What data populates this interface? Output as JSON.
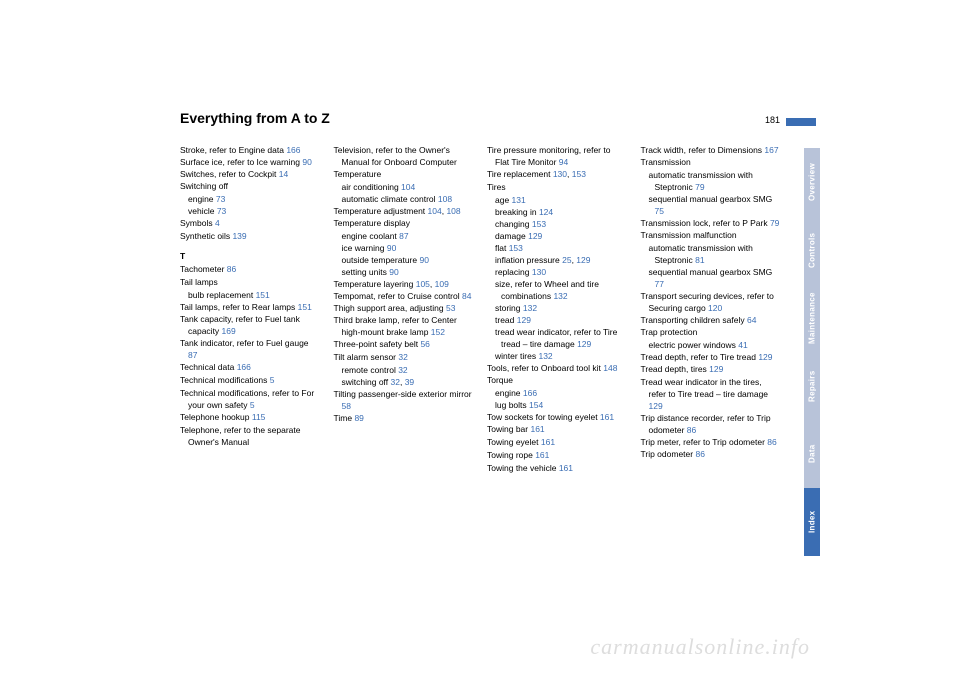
{
  "title": "Everything from A to Z",
  "pagenum": "181",
  "watermark": "carmanualsonline.info",
  "tabs": [
    {
      "label": "Overview",
      "active": false
    },
    {
      "label": "Controls",
      "active": false
    },
    {
      "label": "Maintenance",
      "active": false
    },
    {
      "label": "Repairs",
      "active": false
    },
    {
      "label": "Data",
      "active": false
    },
    {
      "label": "Index",
      "active": true
    }
  ],
  "c1": [
    {
      "t": "Stroke, refer to Engine data ",
      "p": "166",
      "cls": "indent"
    },
    {
      "t": "Surface ice, refer to Ice warning ",
      "p": "90",
      "cls": "indent"
    },
    {
      "t": "Switches, refer to Cockpit ",
      "p": "14",
      "cls": "indent"
    },
    {
      "t": "Switching off",
      "cls": "entry"
    },
    {
      "t": "engine ",
      "p": "73",
      "cls": "sub"
    },
    {
      "t": "vehicle ",
      "p": "73",
      "cls": "sub"
    },
    {
      "t": "Symbols ",
      "p": "4",
      "cls": "entry"
    },
    {
      "t": "Synthetic oils ",
      "p": "139",
      "cls": "entry"
    },
    {
      "t": "T",
      "cls": "section"
    },
    {
      "t": "Tachometer ",
      "p": "86",
      "cls": "entry"
    },
    {
      "t": "Tail lamps",
      "cls": "entry"
    },
    {
      "t": "bulb replacement ",
      "p": "151",
      "cls": "sub"
    },
    {
      "t": "Tail lamps, refer to Rear lamps ",
      "p": "151",
      "cls": "indent"
    },
    {
      "t": "Tank capacity, refer to Fuel tank capacity ",
      "p": "169",
      "cls": "indent"
    },
    {
      "t": "Tank indicator, refer to Fuel gauge ",
      "p": "87",
      "cls": "indent"
    },
    {
      "t": "Technical data ",
      "p": "166",
      "cls": "entry"
    },
    {
      "t": "Technical modifications ",
      "p": "5",
      "cls": "entry"
    },
    {
      "t": "Technical modifications, refer to For your own safety ",
      "p": "5",
      "cls": "indent"
    },
    {
      "t": "Telephone hookup ",
      "p": "115",
      "cls": "entry"
    },
    {
      "t": "Telephone, refer to the separate Owner's Manual",
      "cls": "indent"
    }
  ],
  "c2": [
    {
      "t": "Television, refer to the Owner's Manual for Onboard Computer",
      "cls": "indent"
    },
    {
      "t": "Temperature",
      "cls": "entry"
    },
    {
      "t": "air conditioning ",
      "p": "104",
      "cls": "sub"
    },
    {
      "t": "automatic climate control ",
      "p": "108",
      "cls": "sub"
    },
    {
      "t": "Temperature adjustment ",
      "p": "104",
      "p2": "108",
      "cls": "indent"
    },
    {
      "t": "Temperature display",
      "cls": "entry"
    },
    {
      "t": "engine coolant ",
      "p": "87",
      "cls": "sub"
    },
    {
      "t": "ice warning ",
      "p": "90",
      "cls": "sub"
    },
    {
      "t": "outside temperature ",
      "p": "90",
      "cls": "sub"
    },
    {
      "t": "setting units ",
      "p": "90",
      "cls": "sub"
    },
    {
      "t": "Temperature layering ",
      "p": "105",
      "p2": "109",
      "cls": "indent"
    },
    {
      "t": "Tempomat, refer to Cruise control ",
      "p": "84",
      "cls": "indent"
    },
    {
      "t": "Thigh support area, adjusting ",
      "p": "53",
      "cls": "indent"
    },
    {
      "t": "Third brake lamp, refer to Center high-mount brake lamp ",
      "p": "152",
      "cls": "indent"
    },
    {
      "t": "Three-point safety belt ",
      "p": "56",
      "cls": "entry"
    },
    {
      "t": "Tilt alarm sensor ",
      "p": "32",
      "cls": "entry"
    },
    {
      "t": "remote control ",
      "p": "32",
      "cls": "sub"
    },
    {
      "t": "switching off ",
      "p": "32",
      "p2": "39",
      "cls": "sub"
    },
    {
      "t": "Tilting passenger-side exterior mirror ",
      "p": "58",
      "cls": "indent"
    },
    {
      "t": "Time ",
      "p": "89",
      "cls": "entry"
    }
  ],
  "c3": [
    {
      "t": "Tire pressure monitoring, refer to Flat Tire Monitor ",
      "p": "94",
      "cls": "indent"
    },
    {
      "t": "Tire replacement ",
      "p": "130",
      "p2": "153",
      "cls": "entry"
    },
    {
      "t": "Tires",
      "cls": "entry"
    },
    {
      "t": "age ",
      "p": "131",
      "cls": "sub"
    },
    {
      "t": "breaking in ",
      "p": "124",
      "cls": "sub"
    },
    {
      "t": "changing ",
      "p": "153",
      "cls": "sub"
    },
    {
      "t": "damage ",
      "p": "129",
      "cls": "sub"
    },
    {
      "t": "flat ",
      "p": "153",
      "cls": "sub"
    },
    {
      "t": "inflation pressure ",
      "p": "25",
      "p2": "129",
      "cls": "sub"
    },
    {
      "t": "replacing ",
      "p": "130",
      "cls": "sub"
    },
    {
      "t": "size, refer to Wheel and tire combinations ",
      "p": "132",
      "cls": "sub"
    },
    {
      "t": "storing ",
      "p": "132",
      "cls": "sub"
    },
    {
      "t": "tread ",
      "p": "129",
      "cls": "sub"
    },
    {
      "t": "tread wear indicator, refer to Tire tread – tire damage ",
      "p": "129",
      "cls": "sub"
    },
    {
      "t": "winter tires ",
      "p": "132",
      "cls": "sub"
    },
    {
      "t": "Tools, refer to Onboard tool kit ",
      "p": "148",
      "cls": "indent"
    },
    {
      "t": "Torque",
      "cls": "entry"
    },
    {
      "t": "engine ",
      "p": "166",
      "cls": "sub"
    },
    {
      "t": "lug bolts ",
      "p": "154",
      "cls": "sub"
    },
    {
      "t": "Tow sockets for towing eyelet ",
      "p": "161",
      "cls": "indent"
    },
    {
      "t": "Towing bar ",
      "p": "161",
      "cls": "entry"
    },
    {
      "t": "Towing eyelet ",
      "p": "161",
      "cls": "entry"
    },
    {
      "t": "Towing rope ",
      "p": "161",
      "cls": "entry"
    },
    {
      "t": "Towing the vehicle ",
      "p": "161",
      "cls": "entry"
    }
  ],
  "c4": [
    {
      "t": "Track width, refer to Dimensions ",
      "p": "167",
      "cls": "indent"
    },
    {
      "t": "Transmission",
      "cls": "entry"
    },
    {
      "t": "automatic transmission with Steptronic ",
      "p": "79",
      "cls": "sub"
    },
    {
      "t": "sequential manual gearbox SMG ",
      "p": "75",
      "cls": "sub"
    },
    {
      "t": "Transmission lock, refer to P Park ",
      "p": "79",
      "cls": "indent"
    },
    {
      "t": "Transmission malfunction",
      "cls": "entry"
    },
    {
      "t": "automatic transmission with Steptronic ",
      "p": "81",
      "cls": "sub"
    },
    {
      "t": "sequential manual gearbox SMG ",
      "p": "77",
      "cls": "sub"
    },
    {
      "t": "Transport securing devices, refer to Securing cargo ",
      "p": "120",
      "cls": "indent"
    },
    {
      "t": "Transporting children safely ",
      "p": "64",
      "cls": "indent"
    },
    {
      "t": "Trap protection",
      "cls": "entry"
    },
    {
      "t": "electric power windows ",
      "p": "41",
      "cls": "sub"
    },
    {
      "t": "Tread depth, refer to Tire tread ",
      "p": "129",
      "cls": "indent"
    },
    {
      "t": "Tread depth, tires ",
      "p": "129",
      "cls": "entry"
    },
    {
      "t": "Tread wear indicator in the tires, refer to Tire tread – tire damage ",
      "p": "129",
      "cls": "indent"
    },
    {
      "t": "Trip distance recorder, refer to Trip odometer ",
      "p": "86",
      "cls": "indent"
    },
    {
      "t": "Trip meter, refer to Trip odometer ",
      "p": "86",
      "cls": "indent"
    },
    {
      "t": "Trip odometer ",
      "p": "86",
      "cls": "entry"
    }
  ]
}
